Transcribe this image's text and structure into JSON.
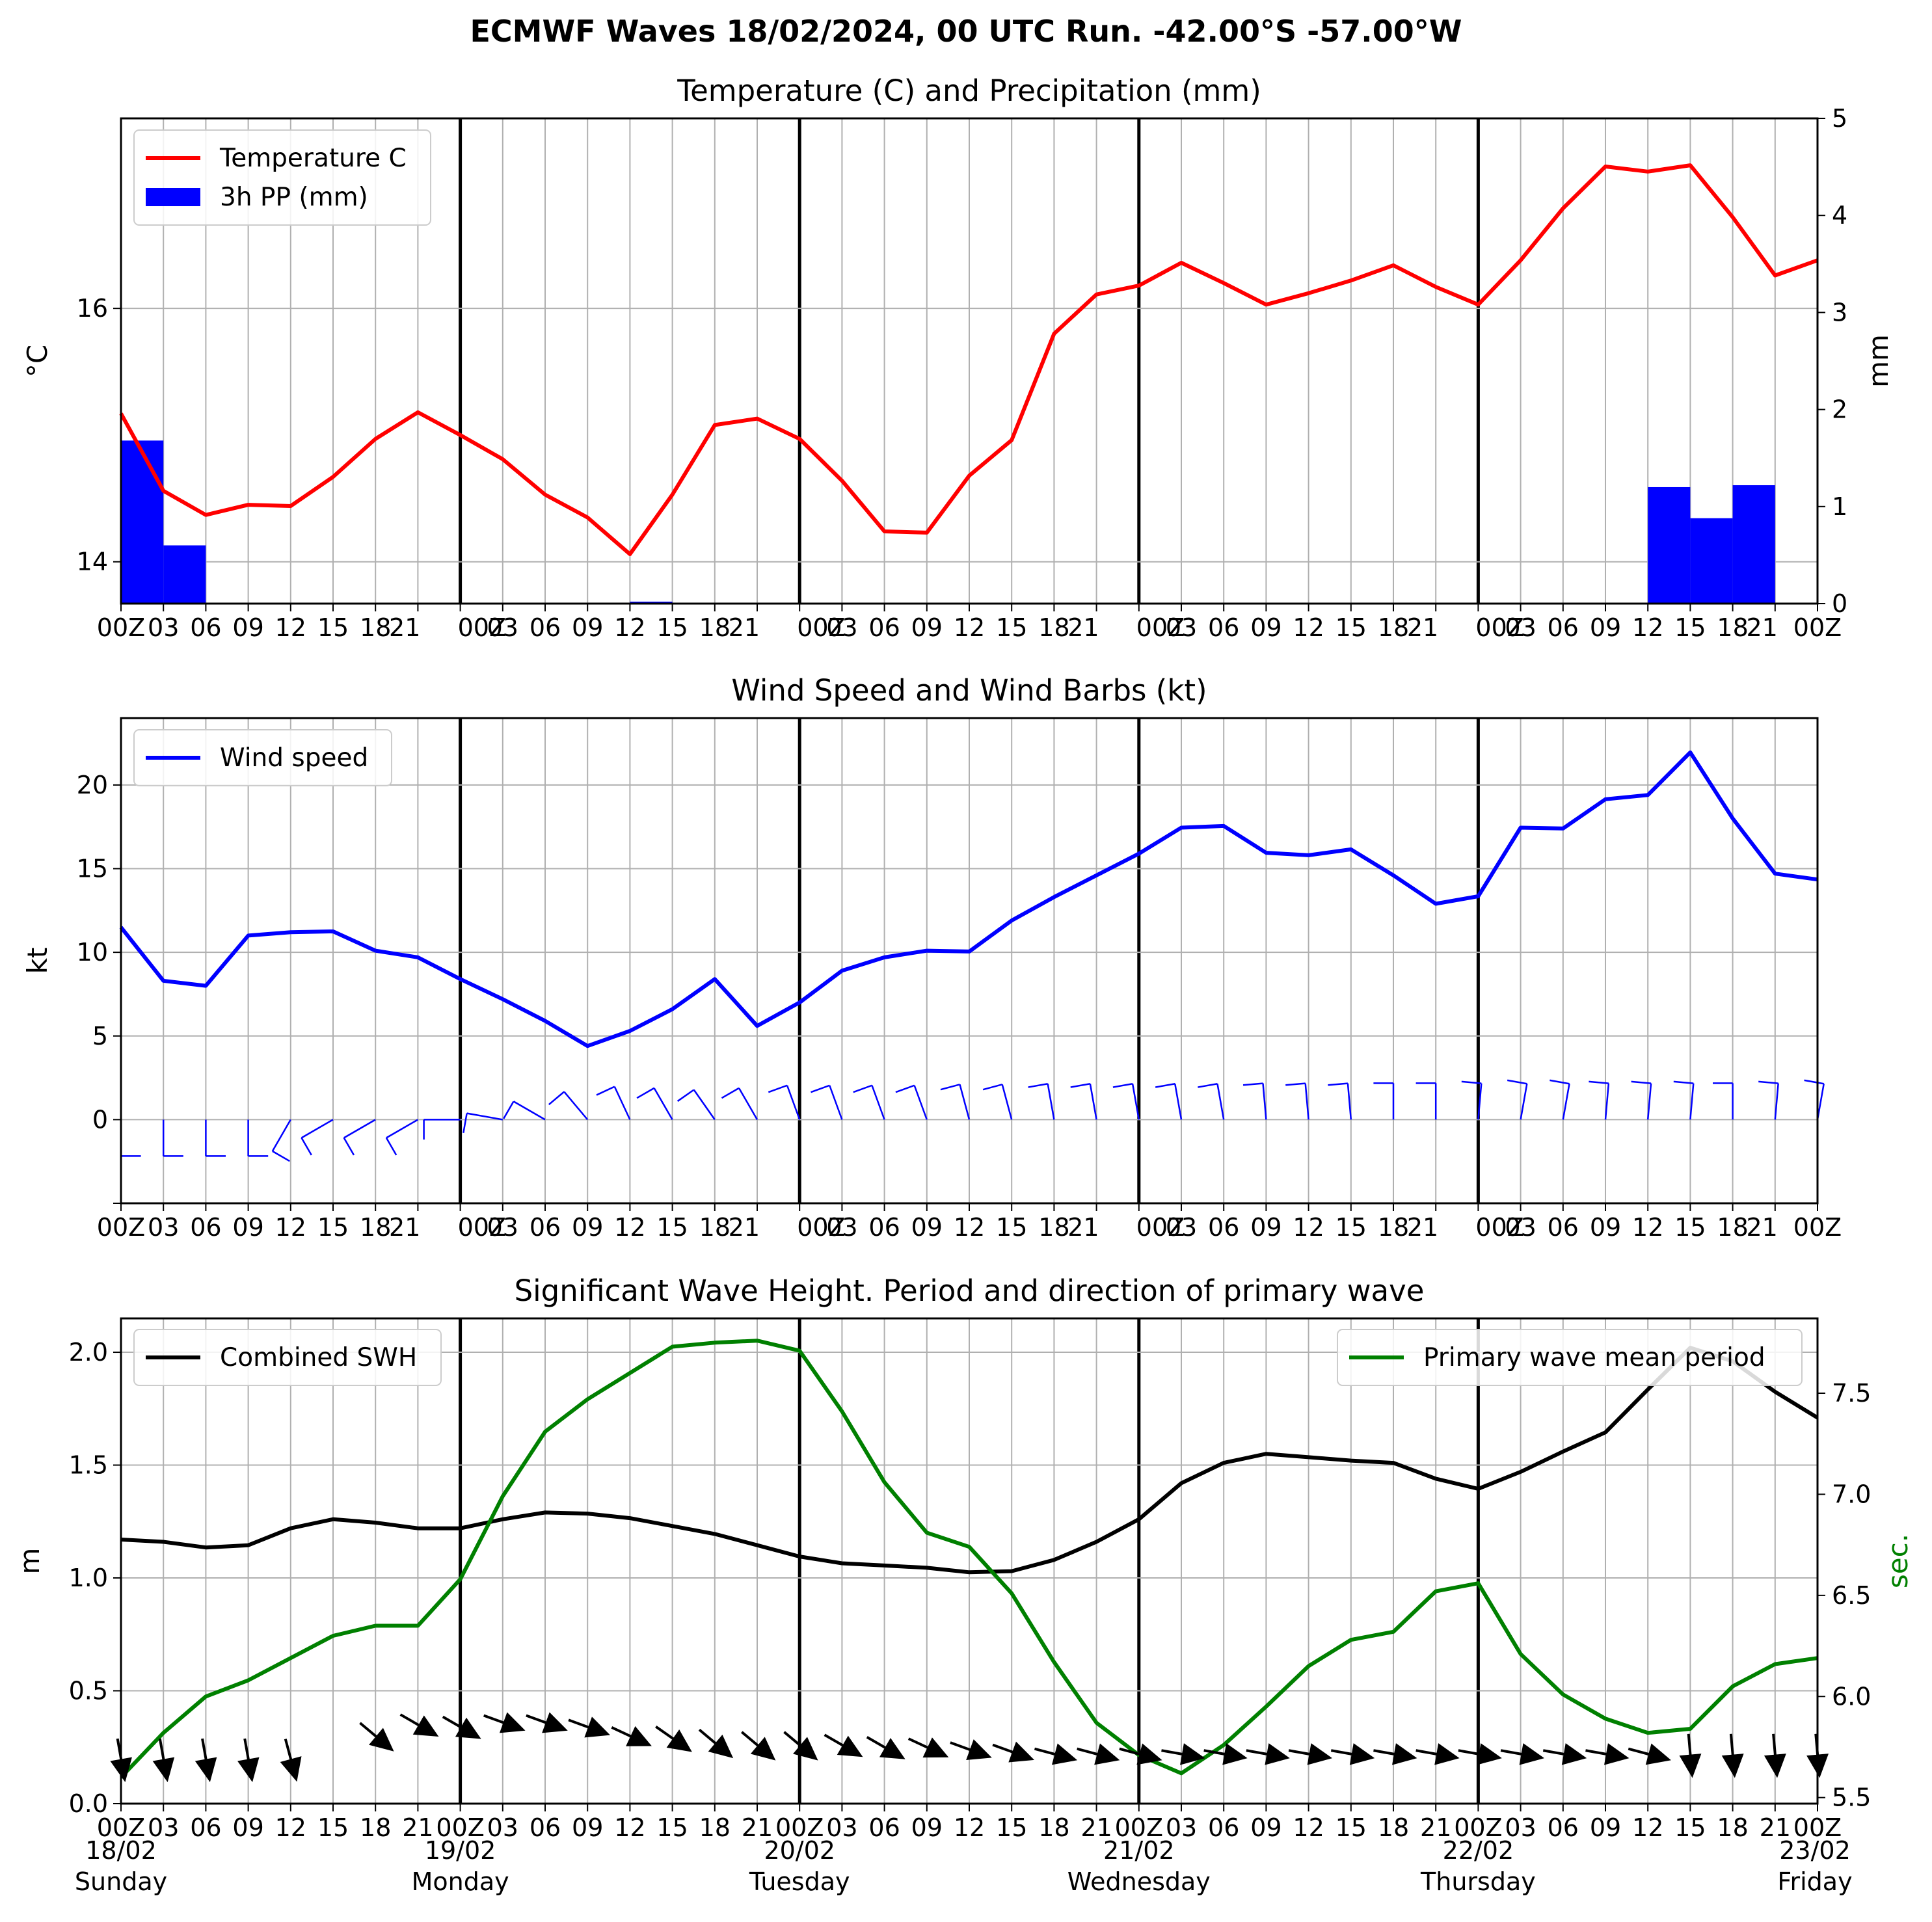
{
  "title": "ECMWF Waves 18/02/2024, 00 UTC Run. -42.00°S -57.00°W",
  "colors": {
    "temperature": "#ff0000",
    "precip": "#0000ff",
    "wind": "#0000ff",
    "swh": "#000000",
    "period": "#008000"
  },
  "x_axis": {
    "tick_labels": [
      "00Z",
      "03",
      "06",
      "09",
      "12",
      "15",
      "18",
      "21",
      "00Z",
      "03",
      "06",
      "09",
      "12",
      "15",
      "18",
      "21",
      "00Z",
      "03",
      "06",
      "09",
      "12",
      "15",
      "18",
      "21",
      "00Z",
      "03",
      "06",
      "09",
      "12",
      "15",
      "18",
      "21",
      "00Z",
      "03",
      "06",
      "09",
      "12",
      "15",
      "18",
      "21",
      "00Z"
    ],
    "days": [
      {
        "date": "18/02",
        "day": "Sunday"
      },
      {
        "date": "19/02",
        "day": "Monday"
      },
      {
        "date": "20/02",
        "day": "Tuesday"
      },
      {
        "date": "21/02",
        "day": "Wednesday"
      },
      {
        "date": "22/02",
        "day": "Thursday"
      },
      {
        "date": "23/02",
        "day": "Friday"
      }
    ]
  },
  "chart_data": [
    {
      "type": "line",
      "title": "Temperature (C) and Precipitation (mm)",
      "ylabel": "$^\\circ$C",
      "y2label": "mm",
      "ylim": [
        13.67,
        17.5
      ],
      "yticks": [
        14,
        16
      ],
      "y2lim": [
        0,
        5
      ],
      "y2ticks": [
        0,
        1,
        2,
        3,
        4,
        5
      ],
      "legend_position": "top-left",
      "grid": true,
      "x_step_hours": 3,
      "series": [
        {
          "name": "Temperature C",
          "type": "line",
          "values": [
            15.17,
            14.56,
            14.37,
            14.45,
            14.44,
            14.67,
            14.97,
            15.18,
            15.0,
            14.81,
            14.53,
            14.35,
            14.06,
            14.53,
            15.08,
            15.13,
            14.97,
            14.64,
            14.24,
            14.23,
            14.68,
            14.96,
            15.8,
            16.11,
            16.18,
            16.36,
            16.2,
            16.03,
            16.12,
            16.22,
            16.34,
            16.17,
            16.03,
            16.38,
            16.79,
            17.12,
            17.08,
            17.13,
            16.72,
            16.26,
            16.38
          ]
        },
        {
          "name": "3h PP (mm)",
          "type": "bar",
          "values": [
            1.68,
            0.6,
            0,
            0,
            0,
            0,
            0,
            0,
            0,
            0,
            0,
            0,
            0.02,
            0,
            0,
            0,
            0,
            0,
            0,
            0,
            0,
            0,
            0,
            0,
            0,
            0,
            0,
            0,
            0,
            0,
            0,
            0,
            0,
            0,
            0,
            0,
            1.2,
            0.88,
            1.22,
            0
          ]
        }
      ]
    },
    {
      "type": "line",
      "title": "Wind Speed and Wind Barbs (kt)",
      "ylabel": "kt",
      "ylim": [
        -5,
        24
      ],
      "yticks": [
        0,
        5,
        10,
        15,
        20
      ],
      "legend_position": "top-left",
      "grid": true,
      "series": [
        {
          "name": "Wind speed",
          "values": [
            11.5,
            8.3,
            8.0,
            11.0,
            11.2,
            11.25,
            10.1,
            9.7,
            8.4,
            7.2,
            5.9,
            4.4,
            5.3,
            6.6,
            8.4,
            5.6,
            7.0,
            8.9,
            9.7,
            10.1,
            10.05,
            11.9,
            13.3,
            14.6,
            15.9,
            17.45,
            17.55,
            15.95,
            15.8,
            16.15,
            14.6,
            12.9,
            13.35,
            17.45,
            17.4,
            19.15,
            19.4,
            21.95,
            18.0,
            14.7,
            14.35
          ]
        }
      ],
      "barb_directions_deg": [
        0,
        0,
        0,
        0,
        330,
        300,
        300,
        300,
        270,
        260,
        240,
        220,
        205,
        210,
        215,
        210,
        200,
        200,
        200,
        200,
        195,
        195,
        190,
        190,
        190,
        190,
        190,
        185,
        185,
        185,
        180,
        180,
        175,
        170,
        170,
        175,
        175,
        175,
        180,
        175,
        170
      ]
    },
    {
      "type": "line",
      "title": "Significant Wave Height. Period and direction of primary wave",
      "ylabel": "m",
      "y2label": "sec.",
      "ylim": [
        0,
        2.15
      ],
      "yticks": [
        0.0,
        0.5,
        1.0,
        1.5,
        2.0
      ],
      "y2lim": [
        5.47,
        7.87
      ],
      "y2ticks": [
        5.5,
        6.0,
        6.5,
        7.0,
        7.5
      ],
      "grid": true,
      "series": [
        {
          "name": "Combined SWH",
          "legend_position": "top-left",
          "values": [
            1.17,
            1.16,
            1.135,
            1.145,
            1.22,
            1.26,
            1.245,
            1.22,
            1.22,
            1.26,
            1.29,
            1.285,
            1.265,
            1.23,
            1.195,
            1.145,
            1.095,
            1.065,
            1.055,
            1.045,
            1.025,
            1.03,
            1.08,
            1.16,
            1.26,
            1.42,
            1.51,
            1.55,
            1.535,
            1.52,
            1.51,
            1.44,
            1.395,
            1.47,
            1.56,
            1.645,
            1.835,
            2.02,
            1.96,
            1.825,
            1.71
          ]
        },
        {
          "name": "Primary wave mean period",
          "legend_position": "top-right",
          "values": [
            5.6,
            5.82,
            6.0,
            6.08,
            6.19,
            6.3,
            6.35,
            6.35,
            6.58,
            6.99,
            7.31,
            7.47,
            7.6,
            7.73,
            7.75,
            7.76,
            7.71,
            7.41,
            7.06,
            6.81,
            6.74,
            6.51,
            6.17,
            5.87,
            5.71,
            5.62,
            5.76,
            5.95,
            6.15,
            6.28,
            6.32,
            6.52,
            6.56,
            6.21,
            6.01,
            5.89,
            5.82,
            5.84,
            6.05,
            6.16,
            6.19
          ]
        }
      ],
      "wave_direction_arrow_angles_deg": [
        -80,
        -80,
        -80,
        -80,
        -75,
        null,
        -40,
        -30,
        -30,
        -20,
        -20,
        -20,
        -25,
        -35,
        -40,
        -40,
        -40,
        -30,
        -30,
        -25,
        -20,
        -20,
        -15,
        -15,
        -15,
        -10,
        -10,
        -10,
        -10,
        -10,
        -10,
        -10,
        -10,
        -10,
        -10,
        -10,
        -15,
        -85,
        -85,
        -85,
        -85
      ],
      "wave_direction_arrow_positions_m": [
        0.2,
        0.2,
        0.2,
        0.2,
        0.2,
        null,
        0.3,
        0.35,
        0.34,
        0.36,
        0.36,
        0.34,
        0.3,
        0.29,
        0.27,
        0.26,
        0.26,
        0.26,
        0.25,
        0.25,
        0.24,
        0.23,
        0.22,
        0.22,
        0.22,
        0.22,
        0.22,
        0.22,
        0.22,
        0.22,
        0.22,
        0.22,
        0.22,
        0.22,
        0.22,
        0.22,
        0.22,
        0.22,
        0.22,
        0.22,
        0.22
      ]
    }
  ]
}
